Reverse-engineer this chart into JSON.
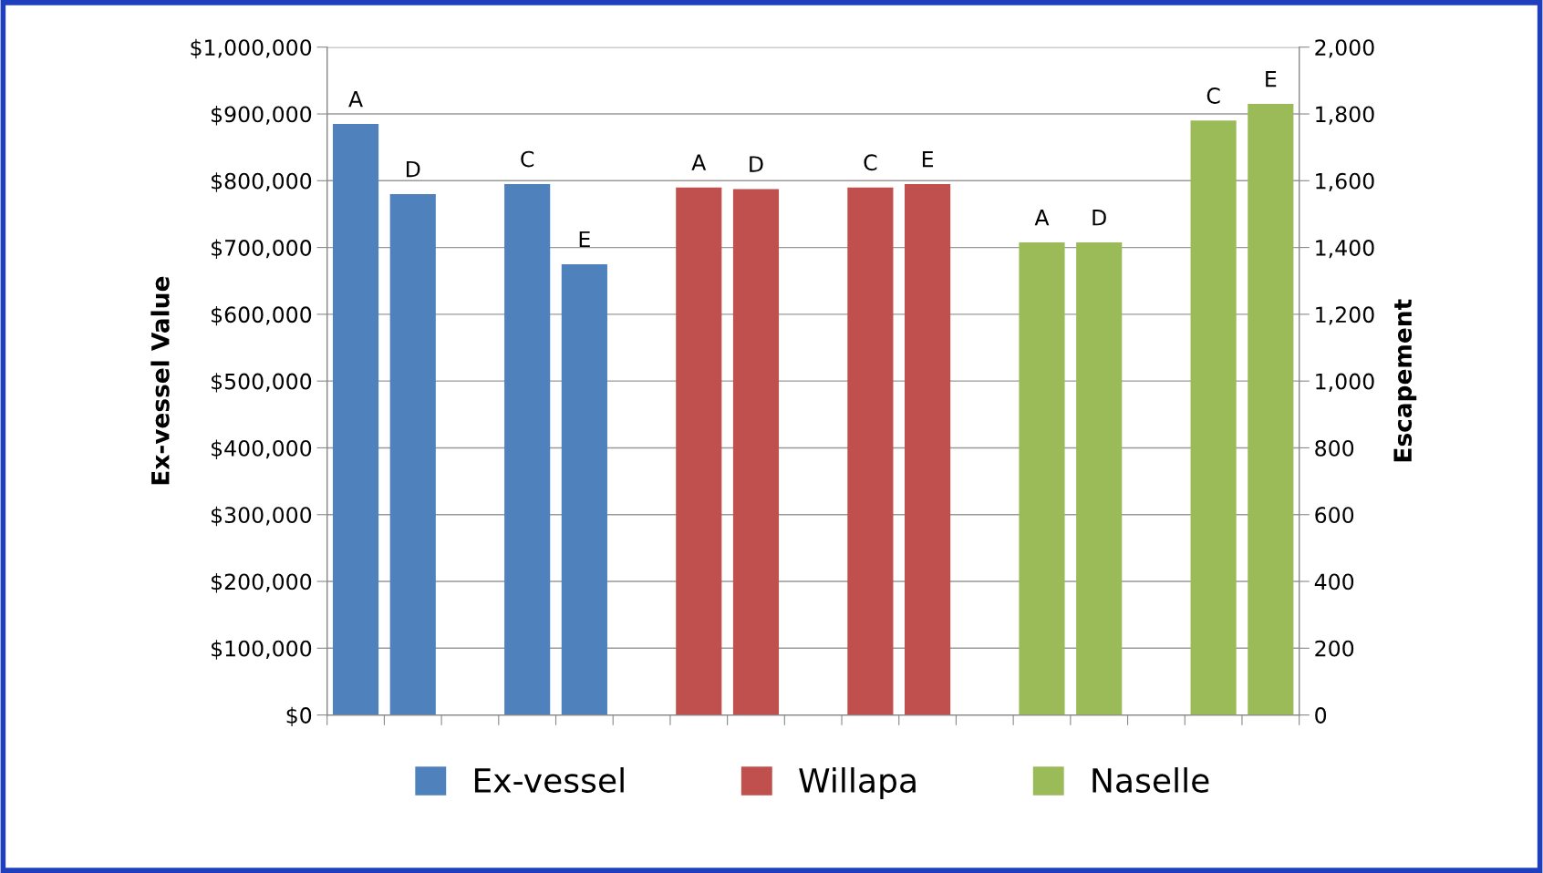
{
  "chart_data": {
    "type": "bar",
    "ylabel": "Ex-vessel Value",
    "y2label": "Escapement",
    "categories": [
      null,
      null,
      null,
      null,
      null,
      null,
      null,
      null,
      null,
      null,
      null,
      null,
      null,
      null,
      null,
      null,
      null
    ],
    "series": [
      {
        "name": "Ex-vessel",
        "color": "#4f81bd",
        "values": [
          885000,
          780000,
          null,
          795000,
          675000,
          null,
          null,
          null,
          null,
          null,
          null,
          null,
          null,
          null,
          null,
          null,
          null
        ],
        "value_labels": [
          "A",
          "D",
          null,
          "C",
          "E",
          null,
          null,
          null,
          null,
          null,
          null,
          null,
          null,
          null,
          null,
          null,
          null
        ]
      },
      {
        "name": "Willapa",
        "color": "#c0504d",
        "axis": "y2",
        "values": [
          null,
          null,
          null,
          null,
          null,
          null,
          1580,
          1575,
          null,
          1580,
          1590,
          null,
          null,
          null,
          null,
          null,
          null
        ],
        "value_labels": [
          null,
          null,
          null,
          null,
          null,
          null,
          "A",
          "D",
          null,
          "C",
          "E",
          null,
          null,
          null,
          null,
          null,
          null
        ]
      },
      {
        "name": "Naselle",
        "color": "#9bbb59",
        "axis": "y2",
        "values": [
          null,
          null,
          null,
          null,
          null,
          null,
          null,
          null,
          null,
          null,
          null,
          null,
          1415,
          1415,
          null,
          1780,
          1830
        ],
        "value_labels": [
          null,
          null,
          null,
          null,
          null,
          null,
          null,
          null,
          null,
          null,
          null,
          null,
          "A",
          "D",
          null,
          "C",
          "E"
        ]
      }
    ],
    "ylim": [
      0,
      1000000
    ],
    "yticks": [
      {
        "value": 0,
        "label": "$0"
      },
      {
        "value": 100000,
        "label": "$100,000"
      },
      {
        "value": 200000,
        "label": "$200,000"
      },
      {
        "value": 300000,
        "label": "$300,000"
      },
      {
        "value": 400000,
        "label": "$400,000"
      },
      {
        "value": 500000,
        "label": "$500,000"
      },
      {
        "value": 600000,
        "label": "$600,000"
      },
      {
        "value": 700000,
        "label": "$700,000"
      },
      {
        "value": 800000,
        "label": "$800,000"
      },
      {
        "value": 900000,
        "label": "$900,000"
      },
      {
        "value": 1000000,
        "label": "$1,000,000"
      }
    ],
    "y2lim": [
      0,
      2000
    ],
    "y2ticks": [
      0,
      {
        "value": 200,
        "label": "200"
      },
      {
        "value": 400,
        "label": "400"
      },
      {
        "value": 600,
        "label": "600"
      },
      {
        "value": 800,
        "label": "800"
      },
      {
        "value": 1000,
        "label": "1,000"
      },
      {
        "value": 1200,
        "label": "1,200"
      },
      {
        "value": 1400,
        "label": "1,400"
      },
      {
        "value": 1600,
        "label": "1,600"
      },
      {
        "value": 1800,
        "label": "1,800"
      },
      {
        "value": 2000,
        "label": "2,000"
      }
    ],
    "grid": "y",
    "legend": "bottom"
  }
}
